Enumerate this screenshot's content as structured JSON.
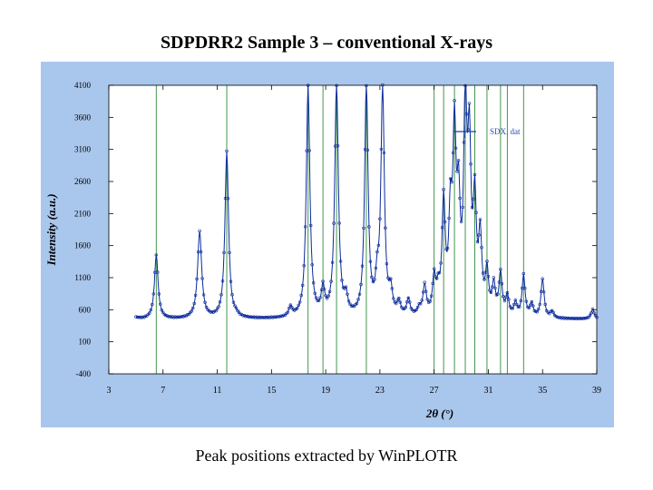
{
  "title": "SDPDRR2 Sample 3 – conventional X-rays",
  "caption": "Peak positions extracted by WinPLOTR",
  "colors": {
    "panel_bg": "#a9c6ec",
    "plot_bg": "#ffffff",
    "observed": "#0b2a9c",
    "calculated": "#0b2a9c",
    "peak_markers": "#2e8b3a",
    "legend_line": "#1a3fb0"
  },
  "chart_data": {
    "type": "line",
    "title": "",
    "xlabel": "2θ (°)",
    "ylabel": "Intensity (a.u.)",
    "xlim": [
      3,
      39
    ],
    "ylim": [
      -400,
      4100
    ],
    "x_ticks": [
      3,
      7,
      11,
      15,
      19,
      23,
      27,
      31,
      35,
      39
    ],
    "y_ticks": [
      -400,
      100,
      600,
      1100,
      1600,
      2100,
      2600,
      3100,
      3600,
      4100
    ],
    "y_tick_labels": [
      "-400",
      "100",
      "600",
      "1100",
      "1600",
      "2100",
      "2600",
      "3100",
      "3600",
      "4100"
    ],
    "grid": false,
    "legend": {
      "position": "top-right",
      "entries": [
        "SDX. dat"
      ]
    },
    "background": 450,
    "peaks": [
      {
        "x": 6.5,
        "height": 1450,
        "width": 0.16
      },
      {
        "x": 9.7,
        "height": 1800,
        "width": 0.18
      },
      {
        "x": 11.7,
        "height": 3050,
        "width": 0.16
      },
      {
        "x": 12.4,
        "height": 480,
        "width": 0.15
      },
      {
        "x": 16.4,
        "height": 600,
        "width": 0.15
      },
      {
        "x": 17.7,
        "height": 4050,
        "width": 0.16
      },
      {
        "x": 18.8,
        "height": 850,
        "width": 0.15
      },
      {
        "x": 19.8,
        "height": 4100,
        "width": 0.16
      },
      {
        "x": 20.5,
        "height": 700,
        "width": 0.15
      },
      {
        "x": 21.9,
        "height": 500,
        "width": 0.15
      },
      {
        "x": 22.0,
        "height": 4050,
        "width": 0.15
      },
      {
        "x": 22.8,
        "height": 900,
        "width": 0.15
      },
      {
        "x": 23.2,
        "height": 4000,
        "width": 0.15
      },
      {
        "x": 23.8,
        "height": 800,
        "width": 0.15
      },
      {
        "x": 24.4,
        "height": 650,
        "width": 0.15
      },
      {
        "x": 25.1,
        "height": 700,
        "width": 0.15
      },
      {
        "x": 25.9,
        "height": 550,
        "width": 0.15
      },
      {
        "x": 26.3,
        "height": 900,
        "width": 0.15
      },
      {
        "x": 27.0,
        "height": 1000,
        "width": 0.14
      },
      {
        "x": 27.3,
        "height": 750,
        "width": 0.14
      },
      {
        "x": 27.7,
        "height": 2150,
        "width": 0.14
      },
      {
        "x": 28.2,
        "height": 1850,
        "width": 0.14
      },
      {
        "x": 28.5,
        "height": 3100,
        "width": 0.14
      },
      {
        "x": 28.8,
        "height": 2000,
        "width": 0.14
      },
      {
        "x": 29.3,
        "height": 3600,
        "width": 0.14
      },
      {
        "x": 29.6,
        "height": 2900,
        "width": 0.14
      },
      {
        "x": 30.0,
        "height": 2100,
        "width": 0.14
      },
      {
        "x": 30.4,
        "height": 1600,
        "width": 0.14
      },
      {
        "x": 30.9,
        "height": 1100,
        "width": 0.14
      },
      {
        "x": 31.4,
        "height": 900,
        "width": 0.14
      },
      {
        "x": 31.9,
        "height": 1100,
        "width": 0.14
      },
      {
        "x": 32.4,
        "height": 750,
        "width": 0.14
      },
      {
        "x": 33.0,
        "height": 650,
        "width": 0.14
      },
      {
        "x": 33.6,
        "height": 1100,
        "width": 0.14
      },
      {
        "x": 34.2,
        "height": 650,
        "width": 0.14
      },
      {
        "x": 35.0,
        "height": 1050,
        "width": 0.14
      },
      {
        "x": 35.7,
        "height": 550,
        "width": 0.14
      },
      {
        "x": 38.7,
        "height": 600,
        "width": 0.14
      }
    ],
    "peak_positions": [
      6.5,
      11.7,
      17.7,
      18.8,
      19.8,
      22.0,
      27.0,
      27.7,
      28.5,
      29.3,
      30.0,
      30.9,
      31.9,
      32.4,
      33.6
    ]
  }
}
